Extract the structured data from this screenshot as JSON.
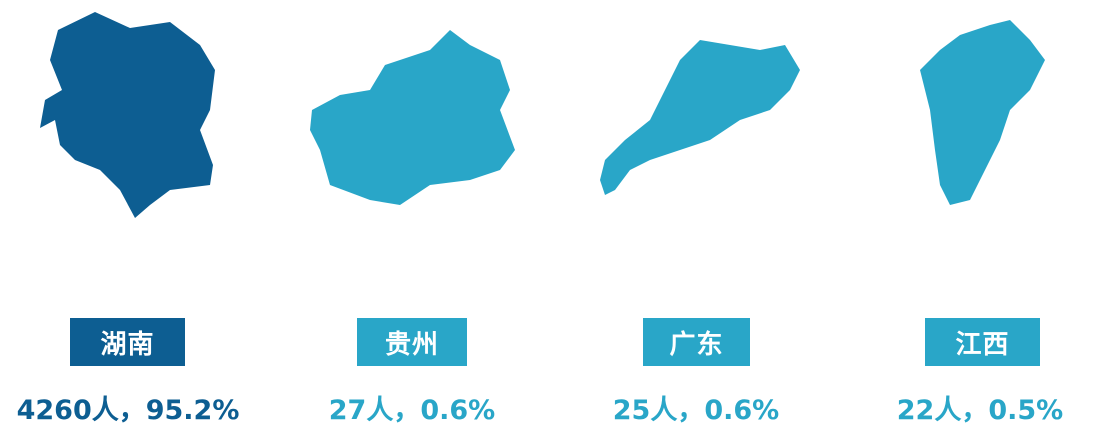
{
  "items": [
    {
      "name": "湖南",
      "label": "4260人，95.2%"
    },
    {
      "name": "贵州",
      "label": "27人，0.6%"
    },
    {
      "name": "广东",
      "label": "25人，0.6%"
    },
    {
      "name": "江西",
      "label": "22人，0.5%"
    }
  ]
}
